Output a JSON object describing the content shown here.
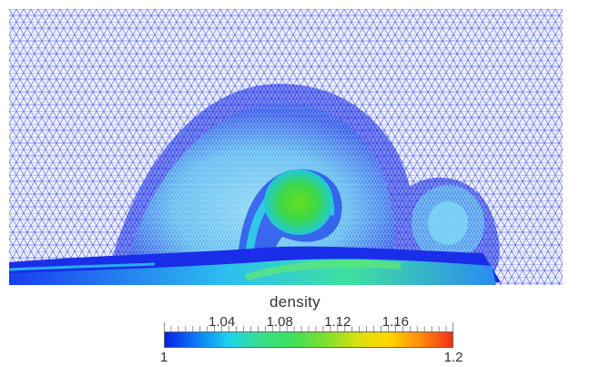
{
  "legend": {
    "title": "density",
    "min": 1,
    "max": 1.2,
    "min_label": "1",
    "max_label": "1.2",
    "major_ticks": [
      {
        "value": 1.04,
        "label": "1.04"
      },
      {
        "value": 1.08,
        "label": "1.08"
      },
      {
        "value": 1.12,
        "label": "1.12"
      },
      {
        "value": 1.16,
        "label": "1.16"
      }
    ],
    "minor_tick_step": 0.005,
    "colormap": [
      "#0a1ee6",
      "#0a7cf5",
      "#1cd2ee",
      "#39e08a",
      "#3ee05a",
      "#7ce02e",
      "#d8e010",
      "#ffd600",
      "#ff8a10",
      "#f03010"
    ]
  },
  "plot": {
    "field": "density",
    "background_color": "#ffffff",
    "mesh_color": "#1a2fe0"
  }
}
